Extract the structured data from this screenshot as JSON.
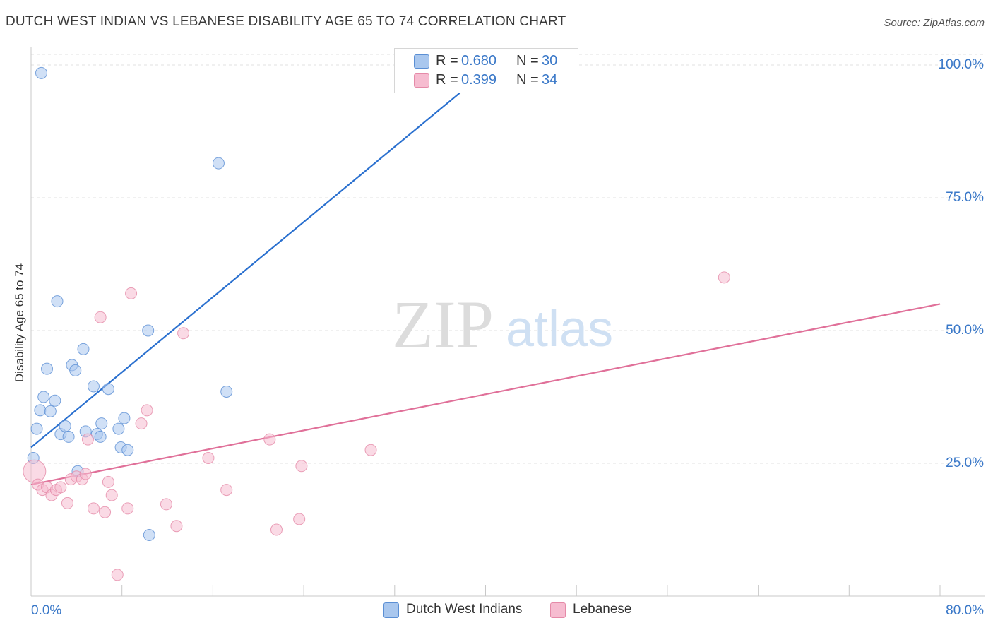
{
  "title": "DUTCH WEST INDIAN VS LEBANESE DISABILITY AGE 65 TO 74 CORRELATION CHART",
  "source": "Source: ZipAtlas.com",
  "legend": {
    "rows": [
      {
        "r_label": "R =",
        "r_value": "0.680",
        "n_label": "N =",
        "n_value": "30"
      },
      {
        "r_label": "R =",
        "r_value": "0.399",
        "n_label": "N =",
        "n_value": "34"
      }
    ]
  },
  "colors": {
    "blue_fill": "#a9c7ee",
    "blue_stroke": "#5b8fd4",
    "blue_line": "#2a70cf",
    "pink_fill": "#f6bcd0",
    "pink_stroke": "#e58aa8",
    "pink_line": "#e07099",
    "axis_text": "#3a78c8",
    "grid": "#e2e2e2"
  },
  "chart_data": {
    "type": "scatter",
    "title": "DUTCH WEST INDIAN VS LEBANESE DISABILITY AGE 65 TO 74 CORRELATION CHART",
    "xlabel": "",
    "ylabel": "Disability Age 65 to 74",
    "xlim": [
      0,
      80
    ],
    "ylim": [
      0,
      102
    ],
    "x_tick_labels": [
      "0.0%",
      "80.0%"
    ],
    "y_tick_labels": [
      "25.0%",
      "50.0%",
      "75.0%",
      "100.0%"
    ],
    "y_ticks": [
      25,
      50,
      75,
      100
    ],
    "grid": true,
    "legend_position": "top-center",
    "watermark": "ZIPatlas",
    "series": [
      {
        "name": "Dutch West Indians",
        "color": "blue",
        "r": 0.68,
        "n": 30,
        "trend": [
          [
            0,
            28.0
          ],
          [
            40.7,
            100.0
          ]
        ],
        "points": [
          [
            0.2,
            26.0
          ],
          [
            0.5,
            31.5
          ],
          [
            0.8,
            35.0
          ],
          [
            1.1,
            37.5
          ],
          [
            1.4,
            42.8
          ],
          [
            1.7,
            34.8
          ],
          [
            2.1,
            36.8
          ],
          [
            2.3,
            55.5
          ],
          [
            2.6,
            30.5
          ],
          [
            3.0,
            32.0
          ],
          [
            3.3,
            30.0
          ],
          [
            3.6,
            43.5
          ],
          [
            3.9,
            42.5
          ],
          [
            4.1,
            23.5
          ],
          [
            4.6,
            46.5
          ],
          [
            4.8,
            31.0
          ],
          [
            5.5,
            39.5
          ],
          [
            5.8,
            30.5
          ],
          [
            6.1,
            30.0
          ],
          [
            6.2,
            32.5
          ],
          [
            6.8,
            39.0
          ],
          [
            7.7,
            31.5
          ],
          [
            7.9,
            28.0
          ],
          [
            8.2,
            33.5
          ],
          [
            8.5,
            27.5
          ],
          [
            10.3,
            50.0
          ],
          [
            10.4,
            11.5
          ],
          [
            16.5,
            81.5
          ],
          [
            17.2,
            38.5
          ],
          [
            0.9,
            98.5
          ]
        ]
      },
      {
        "name": "Lebanese",
        "color": "pink",
        "r": 0.399,
        "n": 34,
        "trend": [
          [
            0,
            21.0
          ],
          [
            80,
            55.0
          ]
        ],
        "points": [
          [
            0.3,
            23.5
          ],
          [
            0.6,
            21.0
          ],
          [
            1.0,
            20.0
          ],
          [
            1.4,
            20.5
          ],
          [
            1.8,
            19.0
          ],
          [
            2.2,
            20.0
          ],
          [
            2.6,
            20.5
          ],
          [
            3.2,
            17.5
          ],
          [
            3.5,
            22.0
          ],
          [
            4.0,
            22.5
          ],
          [
            4.5,
            22.0
          ],
          [
            4.8,
            23.0
          ],
          [
            5.0,
            29.5
          ],
          [
            5.5,
            16.5
          ],
          [
            6.1,
            52.5
          ],
          [
            6.5,
            15.8
          ],
          [
            6.8,
            21.5
          ],
          [
            7.1,
            19.0
          ],
          [
            7.6,
            4.0
          ],
          [
            8.5,
            16.5
          ],
          [
            8.8,
            57.0
          ],
          [
            9.7,
            32.5
          ],
          [
            10.2,
            35.0
          ],
          [
            11.9,
            17.3
          ],
          [
            12.8,
            13.2
          ],
          [
            13.4,
            49.5
          ],
          [
            15.6,
            26.0
          ],
          [
            17.2,
            20.0
          ],
          [
            21.0,
            29.5
          ],
          [
            21.6,
            12.5
          ],
          [
            23.6,
            14.5
          ],
          [
            23.8,
            24.5
          ],
          [
            29.9,
            27.5
          ],
          [
            61.0,
            60.0
          ]
        ]
      }
    ]
  },
  "bottom_legend": [
    {
      "label": "Dutch West Indians"
    },
    {
      "label": "Lebanese"
    }
  ]
}
